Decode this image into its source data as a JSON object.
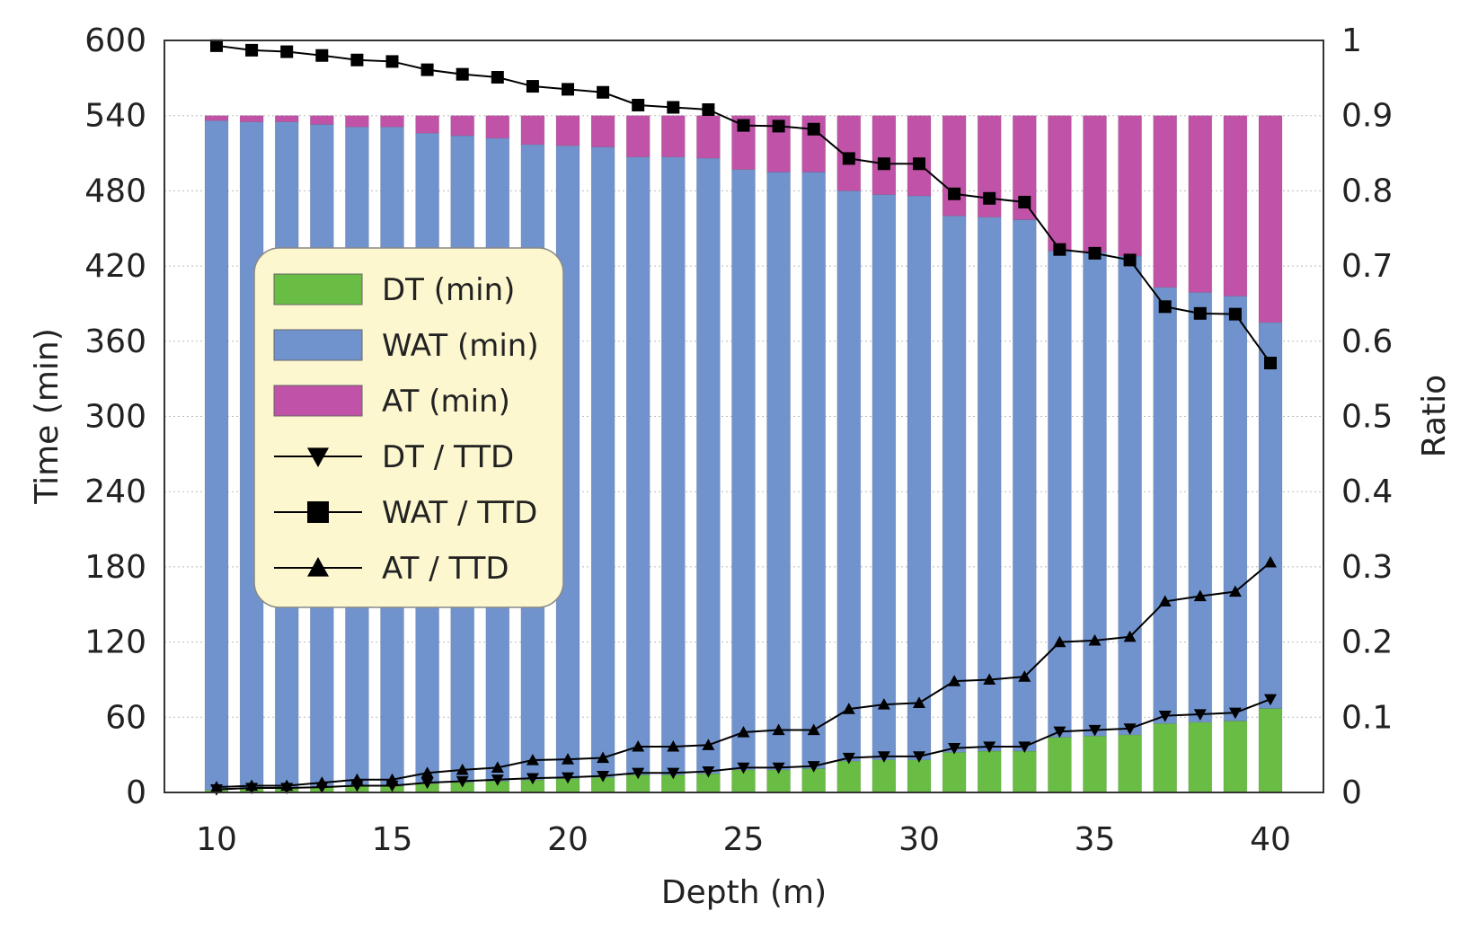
{
  "chart_data": {
    "type": "bar",
    "stacked": true,
    "xlabel": "Depth (m)",
    "ylabel": "Time (min)",
    "y2label": "Ratio",
    "ylim": [
      0,
      600
    ],
    "y2lim": [
      0,
      1
    ],
    "xlim": [
      10,
      40
    ],
    "x_ticks": [
      "10",
      "15",
      "20",
      "25",
      "30",
      "35",
      "40"
    ],
    "y_ticks": [
      "0",
      "60",
      "120",
      "180",
      "240",
      "300",
      "360",
      "420",
      "480",
      "540",
      "600"
    ],
    "y2_ticks": [
      "0",
      "0.1",
      "0.2",
      "0.3",
      "0.4",
      "0.5",
      "0.6",
      "0.7",
      "0.8",
      "0.9",
      "1"
    ],
    "grid": "horizontal dotted",
    "legend_position": "center-left",
    "x": [
      10,
      11,
      12,
      13,
      14,
      15,
      16,
      17,
      18,
      19,
      20,
      21,
      22,
      23,
      24,
      25,
      26,
      27,
      28,
      29,
      30,
      31,
      32,
      33,
      34,
      35,
      36,
      37,
      38,
      39,
      40
    ],
    "bar_series": [
      {
        "name": "DT (min)",
        "color": "#69bd45",
        "values": [
          2,
          3,
          3,
          4,
          5,
          5,
          7,
          8,
          9,
          10,
          11,
          12,
          14,
          14,
          15,
          18,
          18,
          19,
          25,
          26,
          26,
          32,
          33,
          33,
          44,
          45,
          46,
          55,
          56,
          57,
          67
        ]
      },
      {
        "name": "WAT (min)",
        "color": "#7193cd",
        "values": [
          534,
          532,
          532,
          529,
          526,
          526,
          519,
          516,
          513,
          507,
          505,
          503,
          493,
          493,
          491,
          479,
          477,
          476,
          455,
          451,
          450,
          428,
          426,
          424,
          388,
          386,
          382,
          348,
          343,
          339,
          308
        ]
      },
      {
        "name": "AT (min)",
        "color": "#c053a7",
        "values": [
          4,
          5,
          5,
          7,
          9,
          9,
          14,
          16,
          18,
          23,
          24,
          25,
          33,
          33,
          34,
          43,
          45,
          45,
          60,
          63,
          64,
          80,
          81,
          83,
          108,
          109,
          112,
          137,
          141,
          144,
          165
        ]
      }
    ],
    "line_series": [
      {
        "name": "DT / TTD",
        "marker": "triangle-down",
        "axis": "right",
        "values": [
          0.004,
          0.006,
          0.006,
          0.007,
          0.009,
          0.009,
          0.013,
          0.015,
          0.017,
          0.019,
          0.02,
          0.022,
          0.026,
          0.026,
          0.028,
          0.033,
          0.033,
          0.035,
          0.046,
          0.048,
          0.048,
          0.059,
          0.061,
          0.061,
          0.081,
          0.083,
          0.085,
          0.102,
          0.104,
          0.106,
          0.124
        ]
      },
      {
        "name": "WAT / TTD",
        "marker": "square",
        "axis": "right",
        "values": [
          0.993,
          0.987,
          0.985,
          0.98,
          0.974,
          0.972,
          0.961,
          0.955,
          0.951,
          0.939,
          0.935,
          0.931,
          0.914,
          0.911,
          0.908,
          0.887,
          0.886,
          0.882,
          0.843,
          0.836,
          0.836,
          0.796,
          0.79,
          0.785,
          0.722,
          0.717,
          0.708,
          0.646,
          0.637,
          0.636,
          0.571
        ]
      },
      {
        "name": "AT / TTD",
        "marker": "triangle-up",
        "axis": "right",
        "values": [
          0.007,
          0.009,
          0.009,
          0.013,
          0.017,
          0.017,
          0.026,
          0.03,
          0.033,
          0.043,
          0.044,
          0.046,
          0.061,
          0.061,
          0.063,
          0.08,
          0.083,
          0.083,
          0.111,
          0.117,
          0.119,
          0.148,
          0.15,
          0.154,
          0.2,
          0.202,
          0.207,
          0.254,
          0.261,
          0.267,
          0.306
        ]
      }
    ]
  }
}
